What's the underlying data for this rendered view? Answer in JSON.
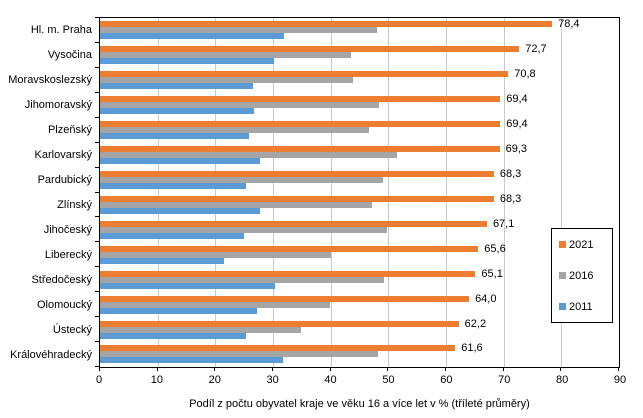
{
  "chart_data": {
    "type": "bar",
    "orientation": "horizontal",
    "title": "",
    "xlabel": "Podíl z počtu obyvatel kraje ve věku 16 a více let v % (tříleté průměry)",
    "ylabel": "",
    "xlim": [
      0,
      90
    ],
    "xticks": [
      0,
      10,
      20,
      30,
      40,
      50,
      60,
      70,
      80,
      90
    ],
    "grid": true,
    "legend_position": "right-inside",
    "categories": [
      "Hl. m. Praha",
      "Vysočina",
      "Moravskoslezský",
      "Jihomoravský",
      "Plzeňský",
      "Karlovarský",
      "Pardubický",
      "Zlínský",
      "Jihočeský",
      "Liberecký",
      "Středočeský",
      "Olomoucký",
      "Ústecký",
      "Královéhradecký"
    ],
    "series": [
      {
        "name": "2021",
        "color": "#ED7D31",
        "values": [
          78.4,
          72.7,
          70.8,
          69.4,
          69.4,
          69.3,
          68.3,
          68.3,
          67.1,
          65.6,
          65.1,
          64.0,
          62.2,
          61.6
        ],
        "labels": [
          "78,4",
          "72,7",
          "70,8",
          "69,4",
          "69,4",
          "69,3",
          "68,3",
          "68,3",
          "67,1",
          "65,6",
          "65,1",
          "64,0",
          "62,2",
          "61,6"
        ]
      },
      {
        "name": "2016",
        "color": "#A5A5A5",
        "values": [
          48.1,
          43.6,
          43.8,
          48.3,
          46.7,
          51.5,
          49.0,
          47.1,
          49.7,
          40.1,
          49.2,
          39.8,
          34.9,
          48.2
        ]
      },
      {
        "name": "2011",
        "color": "#5B9BD5",
        "values": [
          31.9,
          30.2,
          26.6,
          26.7,
          25.8,
          27.7,
          25.4,
          27.7,
          25.0,
          21.5,
          30.3,
          27.2,
          25.3,
          31.7
        ]
      }
    ]
  },
  "colors": {
    "plot_border": "#000000",
    "gridline": "#c9c9c9",
    "text": "#000000",
    "background": "#ffffff"
  }
}
